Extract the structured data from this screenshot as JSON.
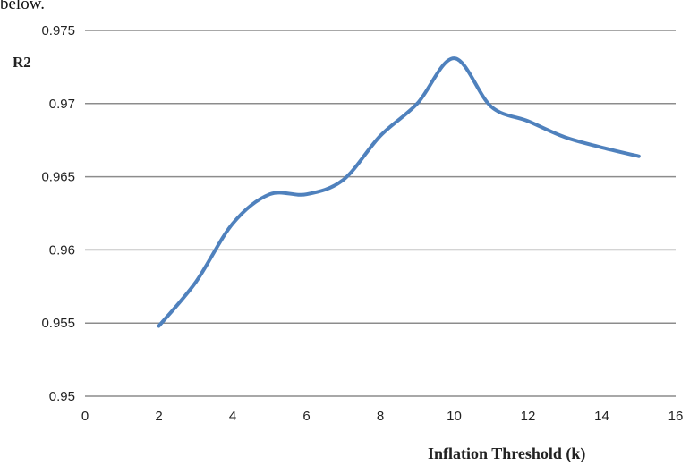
{
  "header_fragment": "below.",
  "chart_data": {
    "type": "line",
    "title": "",
    "xlabel": "Inflation Threshold (k)",
    "ylabel": "R2",
    "xlim": [
      0,
      16
    ],
    "ylim": [
      0.95,
      0.975
    ],
    "x_ticks": [
      "0",
      "2",
      "4",
      "6",
      "8",
      "10",
      "12",
      "14",
      "16"
    ],
    "y_ticks": [
      "0.95",
      "0.955",
      "0.96",
      "0.965",
      "0.97",
      "0.975"
    ],
    "grid": "horizontal",
    "legend": "none",
    "series": [
      {
        "color": "#4f81bd",
        "x": [
          2,
          3,
          4,
          5,
          6,
          7,
          8,
          9,
          10,
          11,
          12,
          13,
          14,
          15
        ],
        "y": [
          0.9548,
          0.9578,
          0.9618,
          0.9638,
          0.9638,
          0.9648,
          0.9678,
          0.97,
          0.9731,
          0.9698,
          0.9688,
          0.9677,
          0.967,
          0.9664
        ]
      }
    ]
  }
}
